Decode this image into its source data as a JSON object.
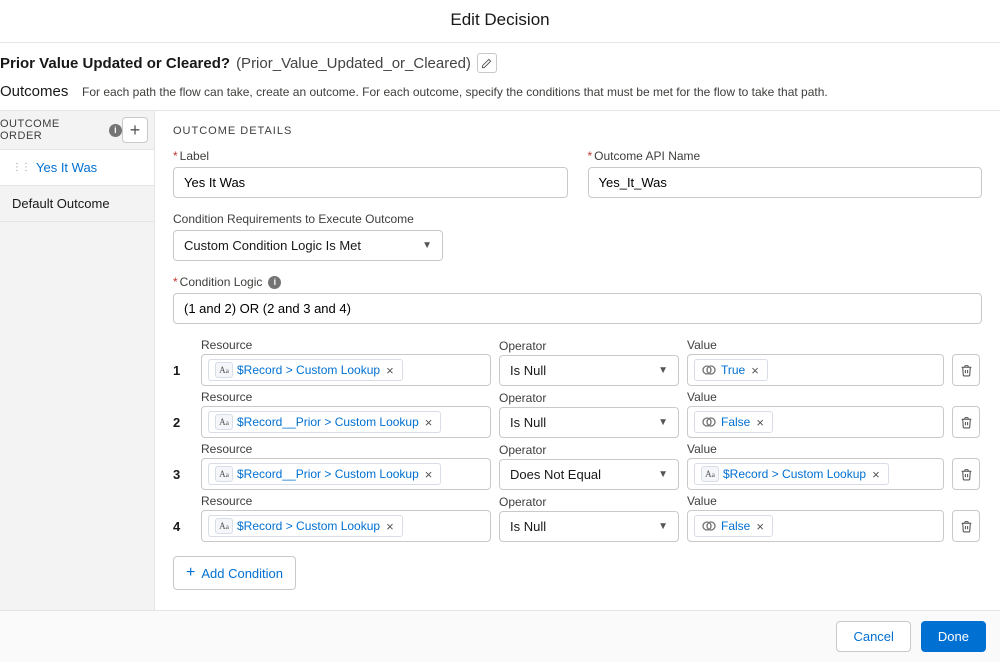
{
  "header": {
    "title": "Edit Decision"
  },
  "decision": {
    "label": "Prior Value Updated or Cleared?",
    "api_name": "(Prior_Value_Updated_or_Cleared)"
  },
  "outcomes_section": {
    "label": "Outcomes",
    "description": "For each path the flow can take, create an outcome. For each outcome, specify the conditions that must be met for the flow to take that path."
  },
  "sidebar": {
    "order_label": "OUTCOME ORDER",
    "items": [
      {
        "label": "Yes It Was",
        "active": true
      },
      {
        "label": "Default Outcome",
        "active": false
      }
    ]
  },
  "details": {
    "section_label": "OUTCOME DETAILS",
    "label_field_label": "Label",
    "label_value": "Yes It Was",
    "api_field_label": "Outcome API Name",
    "api_value": "Yes_It_Was",
    "cond_req_label": "Condition Requirements to Execute Outcome",
    "cond_req_value": "Custom Condition Logic Is Met",
    "cond_logic_label": "Condition Logic",
    "cond_logic_value": "(1 and 2) OR (2 and 3 and 4)",
    "col_resource": "Resource",
    "col_operator": "Operator",
    "col_value": "Value",
    "rows": [
      {
        "idx": "1",
        "resource": "$Record > Custom Lookup",
        "operator": "Is Null",
        "value_type": "bool",
        "value": "True"
      },
      {
        "idx": "2",
        "resource": "$Record__Prior > Custom Lookup",
        "operator": "Is Null",
        "value_type": "bool",
        "value": "False"
      },
      {
        "idx": "3",
        "resource": "$Record__Prior > Custom Lookup",
        "operator": "Does Not Equal",
        "value_type": "ref",
        "value": "$Record > Custom Lookup"
      },
      {
        "idx": "4",
        "resource": "$Record > Custom Lookup",
        "operator": "Is Null",
        "value_type": "bool",
        "value": "False"
      }
    ],
    "add_condition_label": "Add Condition"
  },
  "footer": {
    "cancel": "Cancel",
    "done": "Done"
  }
}
